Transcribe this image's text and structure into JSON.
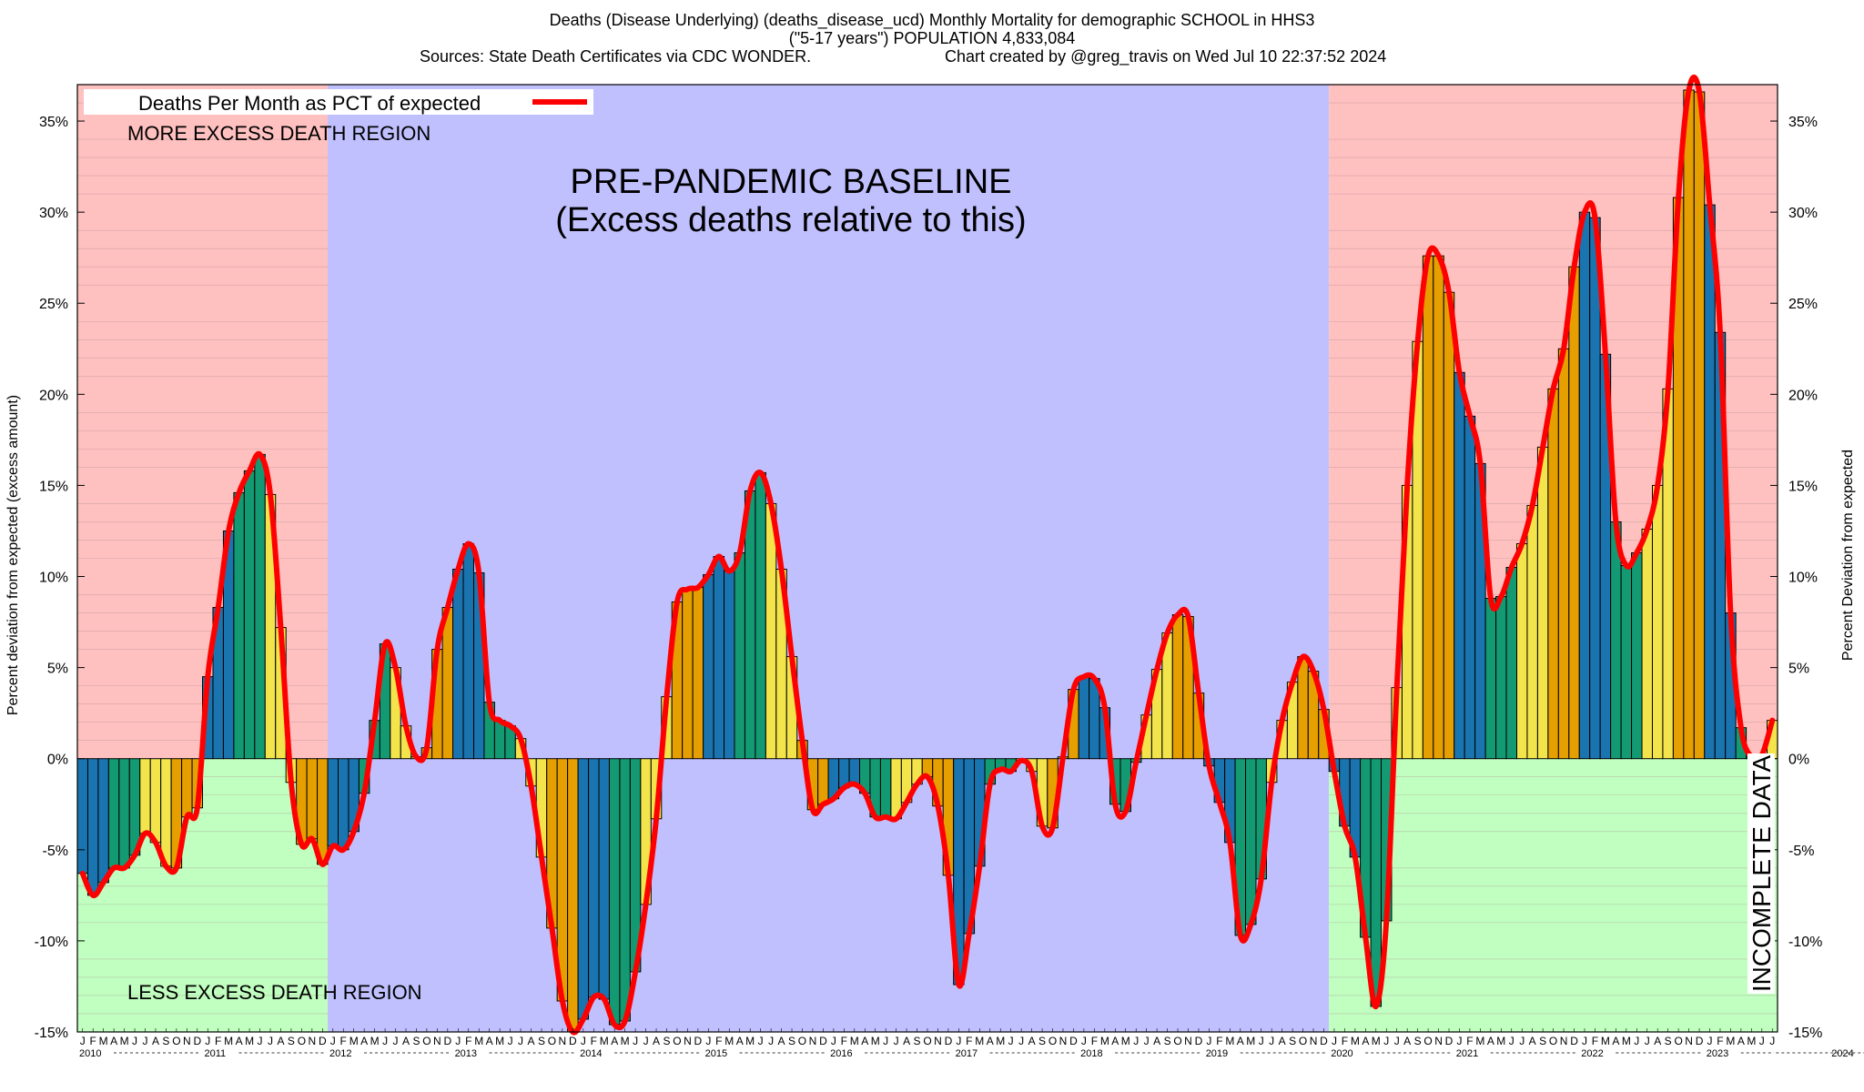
{
  "header": {
    "line1": "Deaths (Disease Underlying) (deaths_disease_ucd) Monthly Mortality for demographic SCHOOL in HHS3",
    "line2": "(\"5-17 years\") POPULATION 4,833,084",
    "line3_left": "Sources: State Death Certificates via CDC WONDER.",
    "line3_right": "Chart created by @greg_travis on Wed Jul 10 22:37:52 2024"
  },
  "chart_data": {
    "type": "bar",
    "title": "Deaths (Disease Underlying) (deaths_disease_ucd) Monthly Mortality for demographic SCHOOL in HHS3",
    "ylabel_left": "Percent deviation from expected (excess amount)",
    "ylabel_right": "Percent Deviation from expected",
    "ylim": [
      -15,
      37
    ],
    "yticks": [
      -15,
      -10,
      -5,
      0,
      5,
      10,
      15,
      20,
      25,
      30,
      35
    ],
    "ytick_labels": [
      "-15%",
      "-10%",
      "-5%",
      "0%",
      "5%",
      "10%",
      "15%",
      "20%",
      "25%",
      "30%",
      "35%"
    ],
    "legend": {
      "label": "Deaths Per Month as PCT of expected",
      "color": "#ff0000",
      "placement": "top-left"
    },
    "annotations": {
      "more_excess": "MORE EXCESS DEATH REGION",
      "less_excess": "LESS EXCESS DEATH REGION",
      "baseline_1": "PRE-PANDEMIC BASELINE",
      "baseline_2": "(Excess deaths relative to this)",
      "incomplete": "INCOMPLETE DATA"
    },
    "month_letters": [
      "J",
      "F",
      "M",
      "A",
      "M",
      "J",
      "J",
      "A",
      "S",
      "O",
      "N",
      "D"
    ],
    "years": [
      "2010",
      "2011",
      "2012",
      "2013",
      "2014",
      "2015",
      "2016",
      "2017",
      "2018",
      "2019",
      "2020",
      "2021",
      "2022",
      "2023",
      "2024"
    ],
    "x_start": "2010-01",
    "x_end": "2024-06",
    "baseline_period": [
      "2012-01",
      "2019-12"
    ],
    "incomplete_period": [
      "2023-08",
      "2024-06"
    ],
    "season_colors": [
      "#1a74b0",
      "#139a72",
      "#f2e44a",
      "#e69f00"
    ],
    "colors": {
      "excess_bg": "#ffc0c0",
      "deficit_bg": "#c0ffc0",
      "baseline_bg": "#c0c0ff",
      "line": "#ff0000",
      "gridline": "#b09090"
    },
    "series": [
      {
        "name": "Deaths Per Month as PCT of expected",
        "values": [
          -6.3,
          -7.5,
          -6.8,
          -6.0,
          -6.0,
          -5.3,
          -4.1,
          -4.6,
          -5.9,
          -6.0,
          -3.2,
          -2.7,
          4.5,
          8.3,
          12.5,
          14.6,
          15.8,
          16.7,
          14.5,
          7.2,
          -1.3,
          -4.7,
          -4.4,
          -5.8,
          -4.8,
          -5.0,
          -4.0,
          -1.9,
          2.1,
          6.3,
          5.0,
          1.8,
          0.1,
          0.6,
          6.0,
          8.3,
          10.4,
          11.8,
          10.2,
          3.1,
          2.1,
          1.8,
          1.1,
          -1.5,
          -5.4,
          -9.3,
          -13.3,
          -15.0,
          -14.3,
          -13.1,
          -13.2,
          -14.6,
          -14.4,
          -11.7,
          -8.0,
          -3.3,
          3.4,
          8.6,
          9.3,
          9.4,
          10.1,
          11.1,
          10.3,
          11.3,
          14.7,
          15.7,
          14.0,
          10.4,
          5.6,
          1.0,
          -2.8,
          -2.5,
          -2.2,
          -1.6,
          -1.4,
          -1.9,
          -3.2,
          -3.2,
          -3.3,
          -2.4,
          -1.4,
          -1.0,
          -2.6,
          -6.4,
          -12.4,
          -9.6,
          -5.9,
          -1.4,
          -0.6,
          -0.7,
          -0.1,
          -0.7,
          -3.7,
          -3.8,
          0.1,
          3.8,
          4.5,
          4.4,
          2.8,
          -2.5,
          -2.9,
          -0.2,
          2.4,
          4.9,
          6.9,
          7.9,
          7.8,
          3.6,
          -0.4,
          -2.4,
          -4.6,
          -9.7,
          -9.1,
          -6.6,
          -1.3,
          2.1,
          4.2,
          5.6,
          4.8,
          2.7,
          -0.7,
          -3.7,
          -5.4,
          -9.8,
          -13.6,
          -8.9,
          3.9,
          15.0,
          22.9,
          27.6,
          27.6,
          25.6,
          21.2,
          18.8,
          16.2,
          8.8,
          8.9,
          10.5,
          11.8,
          13.9,
          17.1,
          20.3,
          22.5,
          27.0,
          30.0,
          29.7,
          22.2,
          13.0,
          10.6,
          11.3,
          12.6,
          15.0,
          20.3,
          30.8,
          36.7,
          36.6,
          30.4,
          23.4,
          8.0,
          1.7,
          0.1,
          0.2,
          2.1
        ]
      }
    ]
  }
}
